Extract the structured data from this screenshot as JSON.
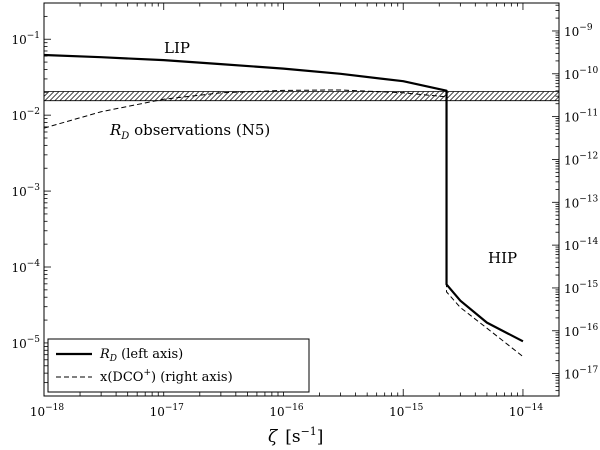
{
  "chart_data": {
    "type": "line",
    "x_axis": {
      "label_symbol": "ζ",
      "label_unit": "[s",
      "label_unit_exp": "−1",
      "label_unit_close": "]",
      "scale": "log",
      "range": [
        1e-18,
        2e-14
      ],
      "ticks": [
        {
          "value": 1e-18,
          "base": "10",
          "exp": "−18"
        },
        {
          "value": 1e-17,
          "base": "10",
          "exp": "−17"
        },
        {
          "value": 1e-16,
          "base": "10",
          "exp": "−16"
        },
        {
          "value": 1e-15,
          "base": "10",
          "exp": "−15"
        },
        {
          "value": 1e-14,
          "base": "10",
          "exp": "−14"
        }
      ]
    },
    "y_left": {
      "scale": "log",
      "range": [
        2e-06,
        0.3
      ],
      "ticks": [
        {
          "value": 1e-05,
          "base": "10",
          "exp": "−5"
        },
        {
          "value": 0.0001,
          "base": "10",
          "exp": "−4"
        },
        {
          "value": 0.001,
          "base": "10",
          "exp": "−3"
        },
        {
          "value": 0.01,
          "base": "10",
          "exp": "−2"
        },
        {
          "value": 0.1,
          "base": "10",
          "exp": "−1"
        }
      ]
    },
    "y_right": {
      "scale": "log",
      "range": [
        3e-18,
        4.5e-09
      ],
      "ticks": [
        {
          "value": 1e-09,
          "base": "10",
          "exp": "−9"
        },
        {
          "value": 1e-10,
          "base": "10",
          "exp": "−10"
        },
        {
          "value": 1e-11,
          "base": "10",
          "exp": "−11"
        },
        {
          "value": 1e-12,
          "base": "10",
          "exp": "−12"
        },
        {
          "value": 1e-13,
          "base": "10",
          "exp": "−13"
        },
        {
          "value": 1e-14,
          "base": "10",
          "exp": "−14"
        },
        {
          "value": 1e-15,
          "base": "10",
          "exp": "−15"
        },
        {
          "value": 1e-16,
          "base": "10",
          "exp": "−16"
        },
        {
          "value": 1e-17,
          "base": "10",
          "exp": "−17"
        }
      ]
    },
    "observation_band": {
      "y_low": 0.0155,
      "y_high": 0.0205,
      "x_start": 1e-18,
      "x_end": 2e-14
    },
    "series": [
      {
        "axis": "left",
        "style": "solid",
        "x": [
          1e-18,
          3e-18,
          1e-17,
          3e-17,
          1e-16,
          3e-16,
          1e-15,
          2.3e-15,
          2.3e-15,
          3e-15,
          5e-15,
          1e-14
        ],
        "y": [
          0.062,
          0.058,
          0.053,
          0.047,
          0.041,
          0.035,
          0.028,
          0.021,
          5.9e-05,
          3.6e-05,
          1.85e-05,
          1.05e-05
        ]
      },
      {
        "axis": "right",
        "style": "dashed",
        "x": [
          1e-18,
          3e-18,
          1e-17,
          3e-17,
          1e-16,
          3e-16,
          1e-15,
          2.3e-15,
          2.3e-15,
          3e-15,
          5e-15,
          1e-14
        ],
        "y": [
          5.4e-12,
          1.3e-11,
          2.55e-11,
          3.6e-11,
          4.1e-11,
          4.2e-11,
          3.6e-11,
          2.9e-11,
          8.1e-16,
          3.5e-16,
          1.15e-16,
          2.5e-17
        ]
      }
    ],
    "annotations": {
      "lip": "LIP",
      "hip": "HIP",
      "obs_sym": "R",
      "obs_sub": "D",
      "obs_text": " observations (N5)"
    },
    "legend": {
      "placement": "bottom-left",
      "entries": [
        {
          "style": "solid",
          "sym": "R",
          "sub": "D",
          "text": " (left axis)"
        },
        {
          "style": "dashed",
          "pre": "x(DCO",
          "sup": "+",
          "post": ") (right axis)"
        }
      ]
    }
  }
}
